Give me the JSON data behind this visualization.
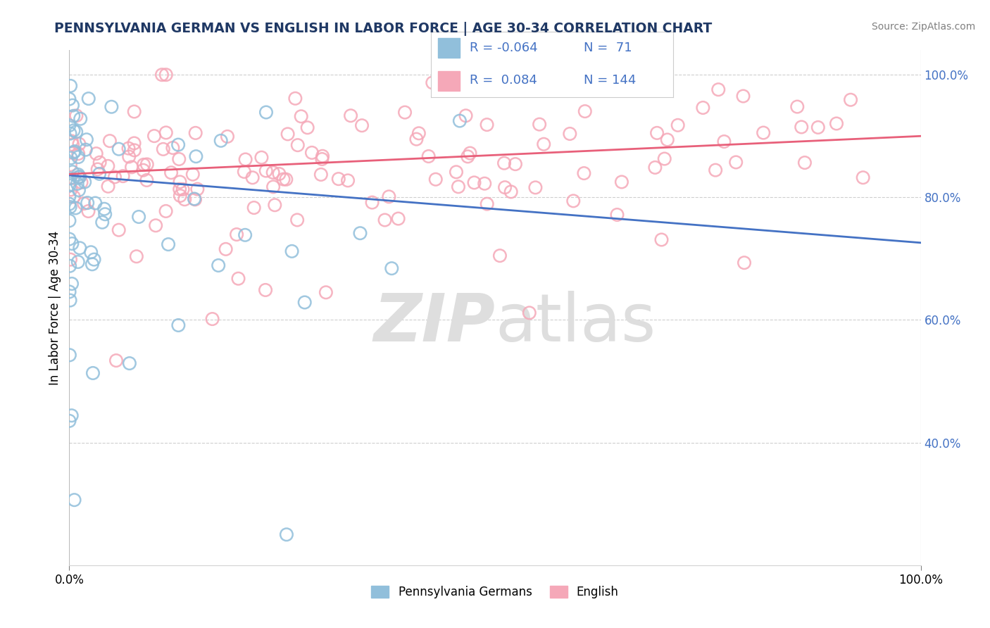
{
  "title": "PENNSYLVANIA GERMAN VS ENGLISH IN LABOR FORCE | AGE 30-34 CORRELATION CHART",
  "source": "Source: ZipAtlas.com",
  "ylabel": "In Labor Force | Age 30-34",
  "right_yticks": [
    "40.0%",
    "60.0%",
    "80.0%",
    "100.0%"
  ],
  "right_ytick_vals": [
    0.4,
    0.6,
    0.8,
    1.0
  ],
  "watermark": "ZIPAtlas",
  "legend": {
    "R_blue": -0.064,
    "N_blue": 71,
    "R_pink": 0.084,
    "N_pink": 144
  },
  "blue_marker_color": "#91BFDB",
  "pink_marker_color": "#F5A8B8",
  "blue_line_color": "#4472C4",
  "pink_line_color": "#E8607A",
  "title_color": "#1F3864",
  "bg_color": "#FFFFFF",
  "watermark_color": "#DEDEDE",
  "grid_color": "#BBBBBB",
  "ylim_min": 0.2,
  "ylim_max": 1.04,
  "xlim_min": 0.0,
  "xlim_max": 1.0,
  "blue_line_start_y": 0.836,
  "blue_line_end_y": 0.726,
  "pink_line_start_y": 0.838,
  "pink_line_end_y": 0.9
}
